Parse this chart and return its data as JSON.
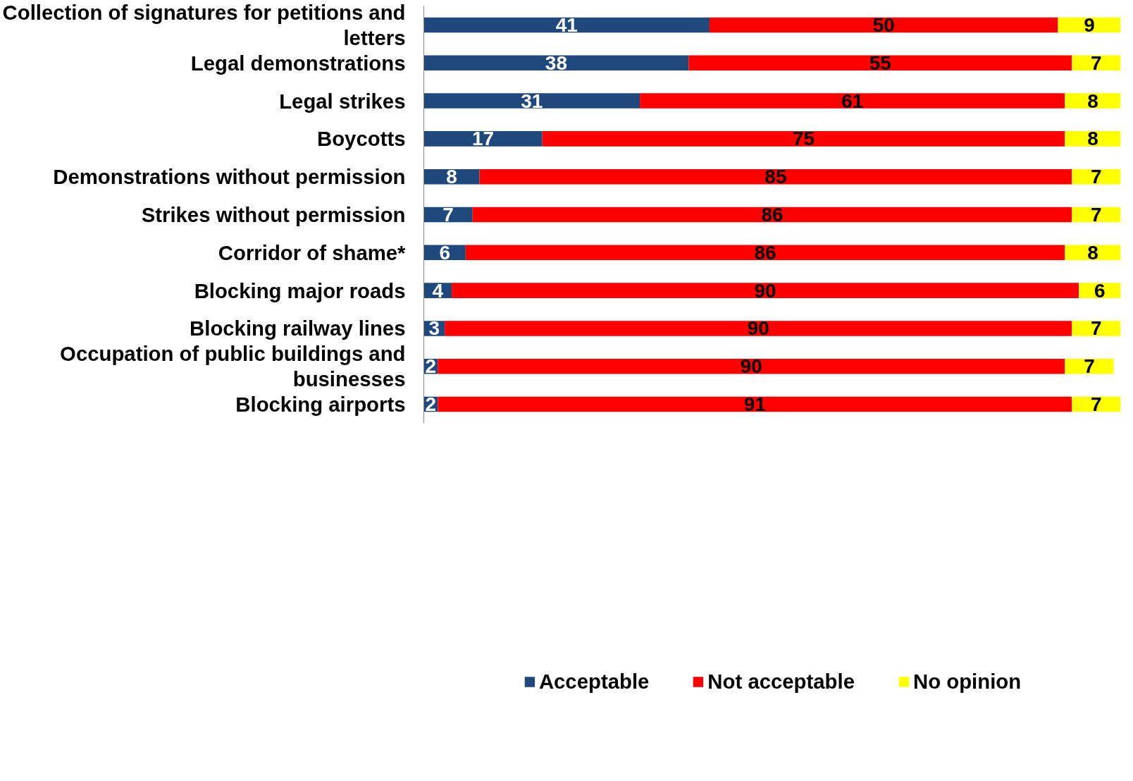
{
  "chart_data": {
    "type": "bar",
    "orientation": "horizontal",
    "stacked": true,
    "data_labels": true,
    "legend": "bottom",
    "grid": false,
    "tick_labels": "y",
    "xlim": [
      0,
      100
    ],
    "categories": [
      "Collection of signatures for petitions and letters",
      "Legal demonstrations",
      "Legal strikes",
      "Boycotts",
      "Demonstrations without permission",
      "Strikes without permission",
      "Corridor of shame*",
      "Blocking major roads",
      "Blocking railway lines",
      "Occupation of public buildings and businesses",
      "Blocking airports"
    ],
    "series": [
      {
        "name": "Acceptable",
        "color": "#1f497d",
        "values": [
          41,
          38,
          31,
          17,
          8,
          7,
          6,
          4,
          3,
          2,
          2
        ]
      },
      {
        "name": "Not acceptable",
        "color": "#ff0000",
        "values": [
          50,
          55,
          61,
          75,
          85,
          86,
          86,
          90,
          90,
          90,
          91
        ]
      },
      {
        "name": "No opinion",
        "color": "#ffff00",
        "values": [
          9,
          7,
          8,
          8,
          7,
          7,
          8,
          6,
          7,
          7,
          7
        ]
      }
    ]
  }
}
